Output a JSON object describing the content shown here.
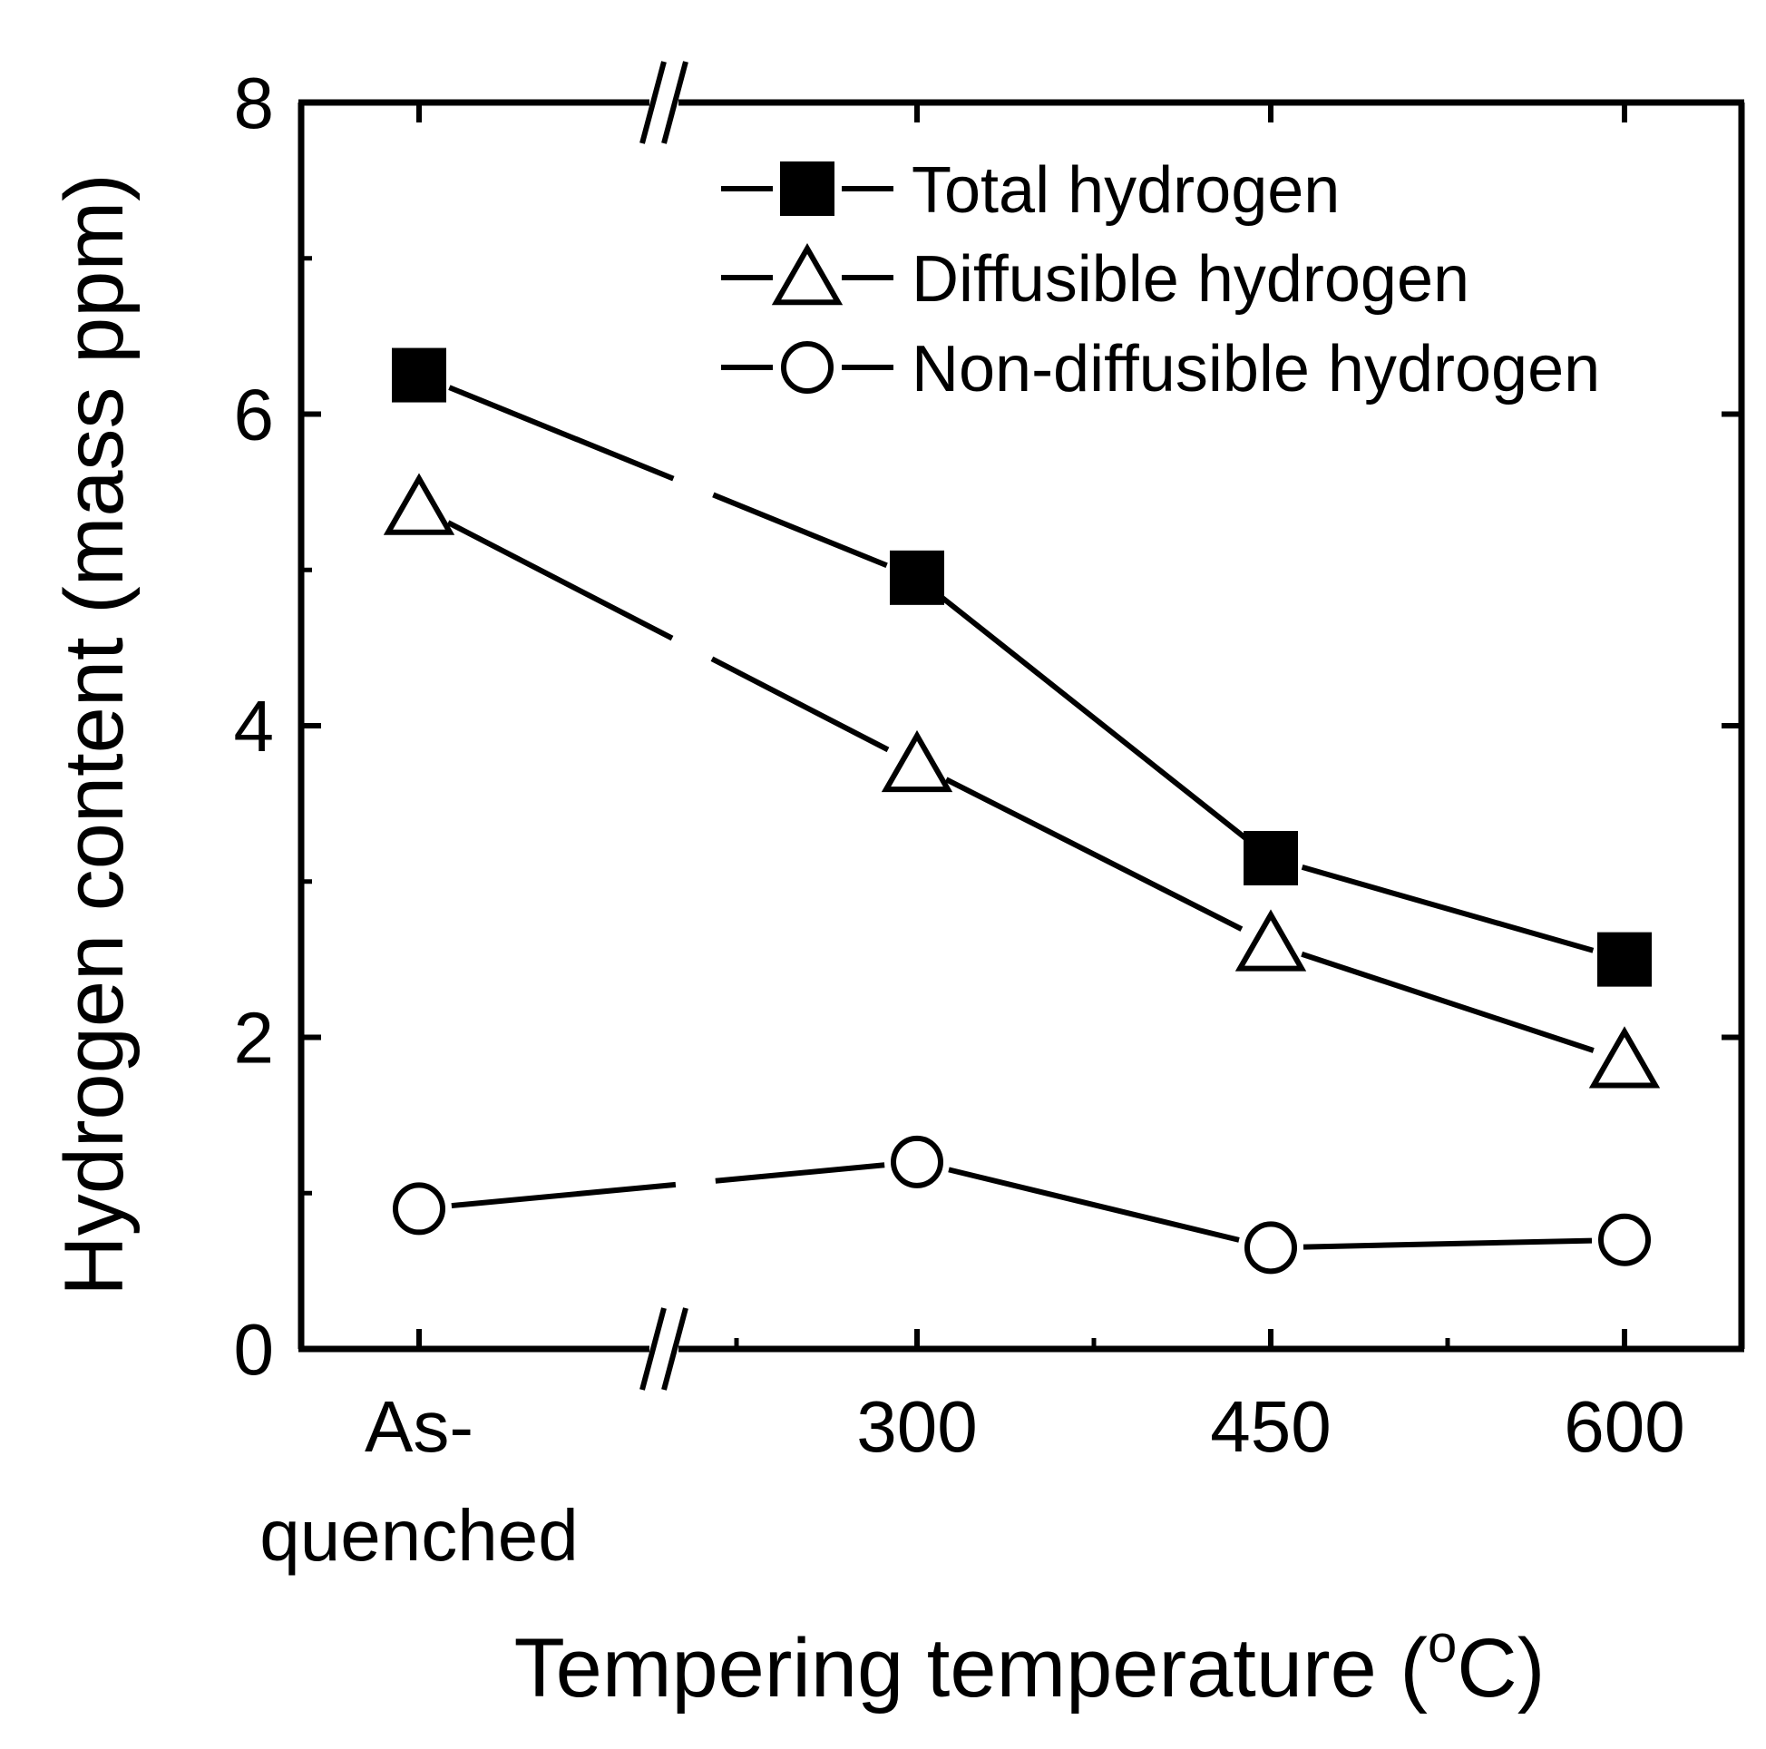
{
  "chart_data": {
    "type": "line",
    "xlabel": "Tempering temperature (",
    "xlabel_unit_sup": "o",
    "xlabel_unit_tail": "C)",
    "ylabel": "Hydrogen content (mass ppm)",
    "ylim": [
      0,
      8
    ],
    "yticks": [
      0,
      2,
      4,
      6,
      8
    ],
    "yticks_minor": [
      1,
      3,
      5,
      7
    ],
    "x_axis_note": "broken axis between As-quenched and 300",
    "categories": [
      {
        "x": 0,
        "label": "As-",
        "label2": "quenched"
      },
      {
        "x": 300,
        "label": "300",
        "label2": ""
      },
      {
        "x": 450,
        "label": "450",
        "label2": ""
      },
      {
        "x": 600,
        "label": "600",
        "label2": ""
      }
    ],
    "legend_position": "top-right",
    "series": [
      {
        "name": "Total hydrogen",
        "marker": "filled-square",
        "values": [
          6.25,
          4.95,
          3.15,
          2.5
        ]
      },
      {
        "name": "Diffusible hydrogen",
        "marker": "open-triangle",
        "values": [
          5.4,
          3.75,
          2.6,
          1.85
        ]
      },
      {
        "name": "Non-diffusible hydrogen",
        "marker": "open-circle",
        "values": [
          0.9,
          1.2,
          0.65,
          0.7
        ]
      }
    ]
  }
}
